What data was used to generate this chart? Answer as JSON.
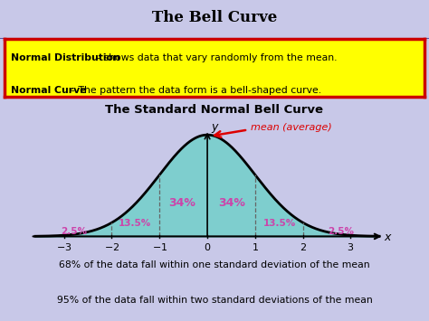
{
  "title": "The Bell Curve",
  "subtitle": "The Standard Normal Bell Curve",
  "bg_color": "#c8c8e8",
  "box_bg": "#ffff00",
  "box_border_outer": "#cc0000",
  "box_border_inner": "#0000cc",
  "curve_fill": "#7ecece",
  "curve_line": "#000000",
  "text_line1_bold": "Normal Distribution",
  "text_line1_rest": " – shows data that vary randomly from the mean.",
  "text_line2_bold": "Normal Curve",
  "text_line2_rest": " – The pattern the data form is a bell-shaped curve.",
  "x_ticks": [
    -3,
    -2,
    -1,
    0,
    1,
    2,
    3
  ],
  "pink_color": "#cc44aa",
  "red_color": "#dd0000",
  "bottom_text1": "68% of the data fall within one standard deviation of the mean",
  "bottom_text2": "95% of the data fall within two standard deviations of the mean",
  "figwidth": 4.74,
  "figheight": 3.55,
  "dpi": 100
}
